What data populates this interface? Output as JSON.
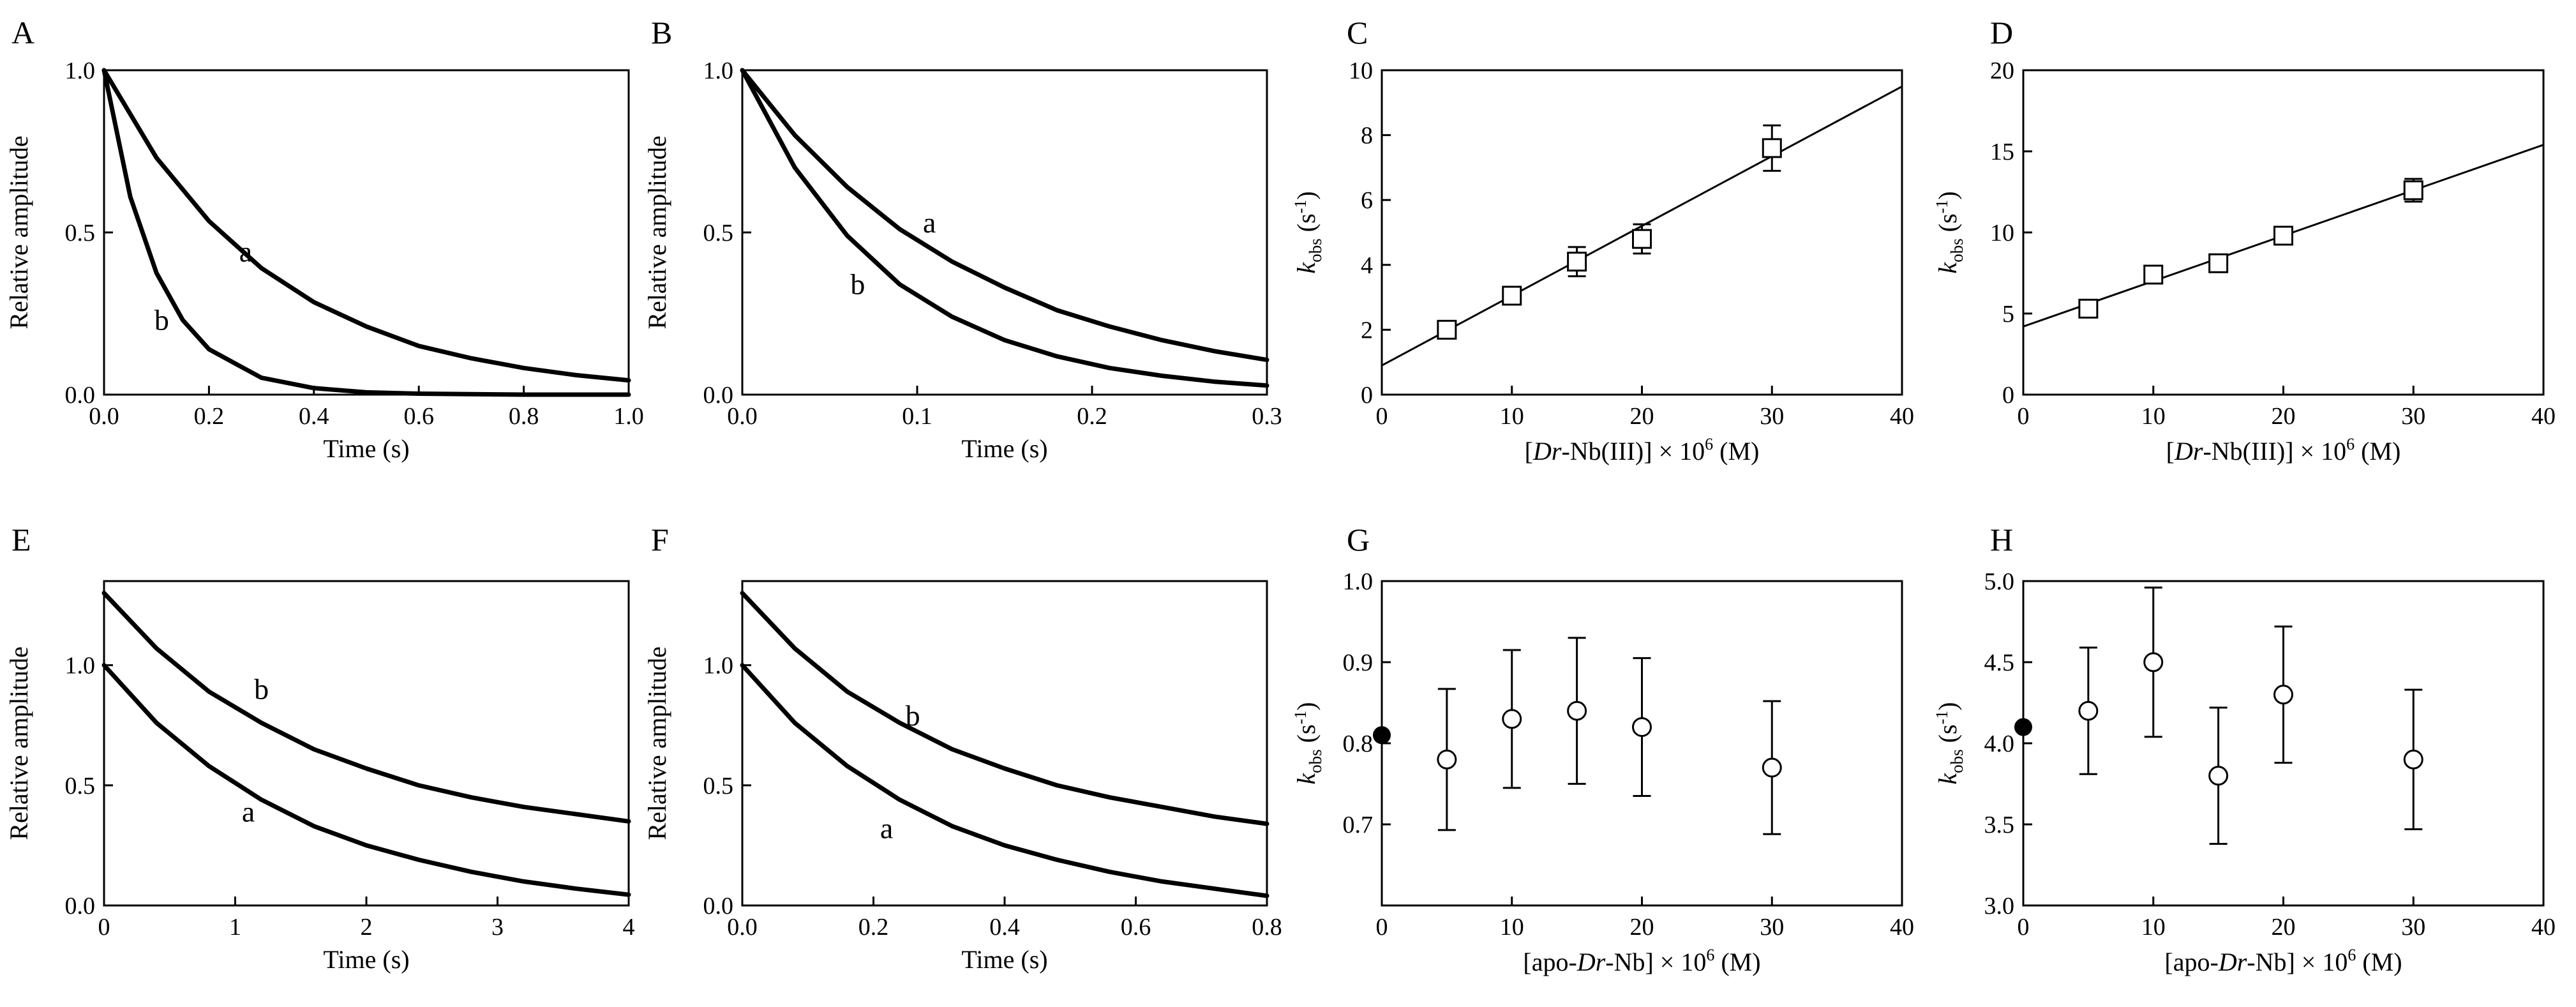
{
  "figure": {
    "panels": [
      {
        "letter": "A"
      },
      {
        "letter": "B"
      },
      {
        "letter": "C"
      },
      {
        "letter": "D"
      },
      {
        "letter": "E"
      },
      {
        "letter": "F"
      },
      {
        "letter": "G"
      },
      {
        "letter": "H"
      }
    ]
  },
  "chart_data": [
    {
      "panel": "A",
      "type": "line",
      "xlabel": "Time (s)",
      "ylabel": "Relative amplitude",
      "xlim": [
        0,
        1
      ],
      "ylim": [
        0,
        1
      ],
      "xticks": [
        0,
        0.2,
        0.4,
        0.6,
        0.8,
        1.0
      ],
      "xtick_labels": [
        "0.0",
        "0.2",
        "0.4",
        "0.6",
        "0.8",
        "1.0"
      ],
      "yticks": [
        0,
        0.5,
        1.0
      ],
      "ytick_labels": [
        "0.0",
        "0.5",
        "1.0"
      ],
      "series": [
        {
          "name": "a",
          "x": [
            0,
            0.1,
            0.2,
            0.3,
            0.4,
            0.5,
            0.6,
            0.7,
            0.8,
            0.9,
            1.0
          ],
          "y": [
            1.0,
            0.73,
            0.535,
            0.39,
            0.285,
            0.21,
            0.15,
            0.112,
            0.082,
            0.06,
            0.044
          ],
          "label_at": [
            0.27,
            0.41
          ]
        },
        {
          "name": "b",
          "x": [
            0,
            0.05,
            0.1,
            0.15,
            0.2,
            0.3,
            0.4,
            0.5,
            0.6,
            0.8,
            1.0
          ],
          "y": [
            1.0,
            0.61,
            0.375,
            0.23,
            0.14,
            0.052,
            0.02,
            0.007,
            0.003,
            0.0,
            0.0
          ],
          "label_at": [
            0.11,
            0.2
          ]
        }
      ]
    },
    {
      "panel": "B",
      "type": "line",
      "xlabel": "Time (s)",
      "ylabel": "Relative amplitude",
      "xlim": [
        0,
        0.3
      ],
      "ylim": [
        0,
        1
      ],
      "xticks": [
        0,
        0.1,
        0.2,
        0.3
      ],
      "xtick_labels": [
        "0.0",
        "0.1",
        "0.2",
        "0.3"
      ],
      "yticks": [
        0,
        0.5,
        1.0
      ],
      "ytick_labels": [
        "0.0",
        "0.5",
        "1.0"
      ],
      "series": [
        {
          "name": "a",
          "x": [
            0,
            0.03,
            0.06,
            0.09,
            0.12,
            0.15,
            0.18,
            0.21,
            0.24,
            0.27,
            0.3
          ],
          "y": [
            1.0,
            0.8,
            0.64,
            0.51,
            0.41,
            0.33,
            0.26,
            0.21,
            0.168,
            0.134,
            0.107
          ],
          "label_at": [
            0.107,
            0.5
          ]
        },
        {
          "name": "b",
          "x": [
            0,
            0.03,
            0.06,
            0.09,
            0.12,
            0.15,
            0.18,
            0.21,
            0.24,
            0.27,
            0.3
          ],
          "y": [
            1.0,
            0.7,
            0.49,
            0.34,
            0.24,
            0.168,
            0.118,
            0.082,
            0.058,
            0.04,
            0.028
          ],
          "label_at": [
            0.066,
            0.31
          ]
        }
      ]
    },
    {
      "panel": "C",
      "type": "scatter",
      "xlabel_parts": [
        "[",
        "Dr",
        "-Nb(III)] × 10",
        "6",
        " (M)"
      ],
      "ylabel_parts": [
        "k",
        "obs",
        " (s",
        "-1",
        ")"
      ],
      "xlim": [
        0,
        40
      ],
      "ylim": [
        0,
        10
      ],
      "xticks": [
        0,
        10,
        20,
        30,
        40
      ],
      "xtick_labels": [
        "0",
        "10",
        "20",
        "30",
        "40"
      ],
      "yticks": [
        0,
        2,
        4,
        6,
        8,
        10
      ],
      "ytick_labels": [
        "0",
        "2",
        "4",
        "6",
        "8",
        "10"
      ],
      "marker": "open-square",
      "points": [
        {
          "x": 5,
          "y": 2.0,
          "err": 0.2
        },
        {
          "x": 10,
          "y": 3.05,
          "err": 0.2
        },
        {
          "x": 15,
          "y": 4.1,
          "err": 0.45
        },
        {
          "x": 20,
          "y": 4.8,
          "err": 0.45
        },
        {
          "x": 30,
          "y": 7.6,
          "err": 0.7
        }
      ],
      "fit_line": {
        "x": [
          0,
          40
        ],
        "y": [
          0.9,
          9.5
        ]
      }
    },
    {
      "panel": "D",
      "type": "scatter",
      "xlabel_parts": [
        "[",
        "Dr",
        "-Nb(III)] × 10",
        "6",
        " (M)"
      ],
      "ylabel_parts": [
        "k",
        "obs",
        " (s",
        "-1",
        ")"
      ],
      "xlim": [
        0,
        40
      ],
      "ylim": [
        0,
        20
      ],
      "xticks": [
        0,
        10,
        20,
        30,
        40
      ],
      "xtick_labels": [
        "0",
        "10",
        "20",
        "30",
        "40"
      ],
      "yticks": [
        0,
        5,
        10,
        15,
        20
      ],
      "ytick_labels": [
        "0",
        "5",
        "10",
        "15",
        "20"
      ],
      "marker": "open-square",
      "points": [
        {
          "x": 5,
          "y": 5.3,
          "err": 0.3
        },
        {
          "x": 10,
          "y": 7.4,
          "err": 0.3
        },
        {
          "x": 15,
          "y": 8.1,
          "err": 0.3
        },
        {
          "x": 20,
          "y": 9.8,
          "err": 0.3
        },
        {
          "x": 30,
          "y": 12.6,
          "err": 0.7
        }
      ],
      "fit_line": {
        "x": [
          0,
          40
        ],
        "y": [
          4.2,
          15.4
        ]
      }
    },
    {
      "panel": "E",
      "type": "line",
      "xlabel": "Time (s)",
      "ylabel": "Relative amplitude",
      "xlim": [
        0,
        4
      ],
      "ylim": [
        0,
        1.35
      ],
      "xticks": [
        0,
        1,
        2,
        3,
        4
      ],
      "xtick_labels": [
        "0",
        "1",
        "2",
        "3",
        "4"
      ],
      "yticks": [
        0,
        0.5,
        1.0
      ],
      "ytick_labels": [
        "0.0",
        "0.5",
        "1.0"
      ],
      "series": [
        {
          "name": "b",
          "x": [
            0,
            0.4,
            0.8,
            1.2,
            1.6,
            2.0,
            2.4,
            2.8,
            3.2,
            3.6,
            4.0
          ],
          "y": [
            1.3,
            1.07,
            0.89,
            0.76,
            0.65,
            0.57,
            0.5,
            0.45,
            0.41,
            0.38,
            0.35
          ],
          "label_at": [
            1.2,
            0.86
          ]
        },
        {
          "name": "a",
          "x": [
            0,
            0.4,
            0.8,
            1.2,
            1.6,
            2.0,
            2.4,
            2.8,
            3.2,
            3.6,
            4.0
          ],
          "y": [
            1.0,
            0.76,
            0.58,
            0.44,
            0.33,
            0.25,
            0.19,
            0.14,
            0.1,
            0.07,
            0.045
          ],
          "label_at": [
            1.1,
            0.35
          ]
        }
      ]
    },
    {
      "panel": "F",
      "type": "line",
      "xlabel": "Time (s)",
      "ylabel": "Relative amplitude",
      "xlim": [
        0,
        0.8
      ],
      "ylim": [
        0,
        1.35
      ],
      "xticks": [
        0,
        0.2,
        0.4,
        0.6,
        0.8
      ],
      "xtick_labels": [
        "0.0",
        "0.2",
        "0.4",
        "0.6",
        "0.8"
      ],
      "yticks": [
        0,
        0.5,
        1.0
      ],
      "ytick_labels": [
        "0.0",
        "0.5",
        "1.0"
      ],
      "series": [
        {
          "name": "b",
          "x": [
            0,
            0.08,
            0.16,
            0.24,
            0.32,
            0.4,
            0.48,
            0.56,
            0.64,
            0.72,
            0.8
          ],
          "y": [
            1.3,
            1.07,
            0.89,
            0.76,
            0.65,
            0.57,
            0.5,
            0.45,
            0.41,
            0.37,
            0.34
          ],
          "label_at": [
            0.26,
            0.75
          ]
        },
        {
          "name": "a",
          "x": [
            0,
            0.08,
            0.16,
            0.24,
            0.32,
            0.4,
            0.48,
            0.56,
            0.64,
            0.72,
            0.8
          ],
          "y": [
            1.0,
            0.76,
            0.58,
            0.44,
            0.33,
            0.25,
            0.19,
            0.14,
            0.1,
            0.07,
            0.04
          ],
          "label_at": [
            0.22,
            0.28
          ]
        }
      ]
    },
    {
      "panel": "G",
      "type": "scatter",
      "xlabel_parts": [
        "[apo-",
        "Dr",
        "-Nb] × 10",
        "6",
        " (M)"
      ],
      "ylabel_parts": [
        "k",
        "obs",
        " (s",
        "-1",
        ")"
      ],
      "xlim": [
        0,
        40
      ],
      "ylim": [
        0.6,
        1.0
      ],
      "xticks": [
        0,
        10,
        20,
        30,
        40
      ],
      "xtick_labels": [
        "0",
        "10",
        "20",
        "30",
        "40"
      ],
      "yticks": [
        0.7,
        0.8,
        0.9,
        1.0
      ],
      "ytick_labels": [
        "0.7",
        "0.8",
        "0.9",
        "1.0"
      ],
      "marker": "open-circle",
      "reference_point": {
        "x": 0,
        "y": 0.81
      },
      "points": [
        {
          "x": 5,
          "y": 0.78,
          "err": 0.087
        },
        {
          "x": 10,
          "y": 0.83,
          "err": 0.085
        },
        {
          "x": 15,
          "y": 0.84,
          "err": 0.09
        },
        {
          "x": 20,
          "y": 0.82,
          "err": 0.085
        },
        {
          "x": 30,
          "y": 0.77,
          "err": 0.082
        }
      ]
    },
    {
      "panel": "H",
      "type": "scatter",
      "xlabel_parts": [
        "[apo-",
        "Dr",
        "-Nb] × 10",
        "6",
        " (M)"
      ],
      "ylabel_parts": [
        "k",
        "obs",
        " (s",
        "-1",
        ")"
      ],
      "xlim": [
        0,
        40
      ],
      "ylim": [
        3.0,
        5.0
      ],
      "xticks": [
        0,
        10,
        20,
        30,
        40
      ],
      "xtick_labels": [
        "0",
        "10",
        "20",
        "30",
        "40"
      ],
      "yticks": [
        3.0,
        3.5,
        4.0,
        4.5,
        5.0
      ],
      "ytick_labels": [
        "3.0",
        "3.5",
        "4.0",
        "4.5",
        "5.0"
      ],
      "marker": "open-circle",
      "reference_point": {
        "x": 0,
        "y": 4.1
      },
      "points": [
        {
          "x": 5,
          "y": 4.2,
          "err": 0.39
        },
        {
          "x": 10,
          "y": 4.5,
          "err": 0.46
        },
        {
          "x": 15,
          "y": 3.8,
          "err": 0.42
        },
        {
          "x": 20,
          "y": 4.3,
          "err": 0.42
        },
        {
          "x": 30,
          "y": 3.9,
          "err": 0.43
        }
      ]
    }
  ]
}
